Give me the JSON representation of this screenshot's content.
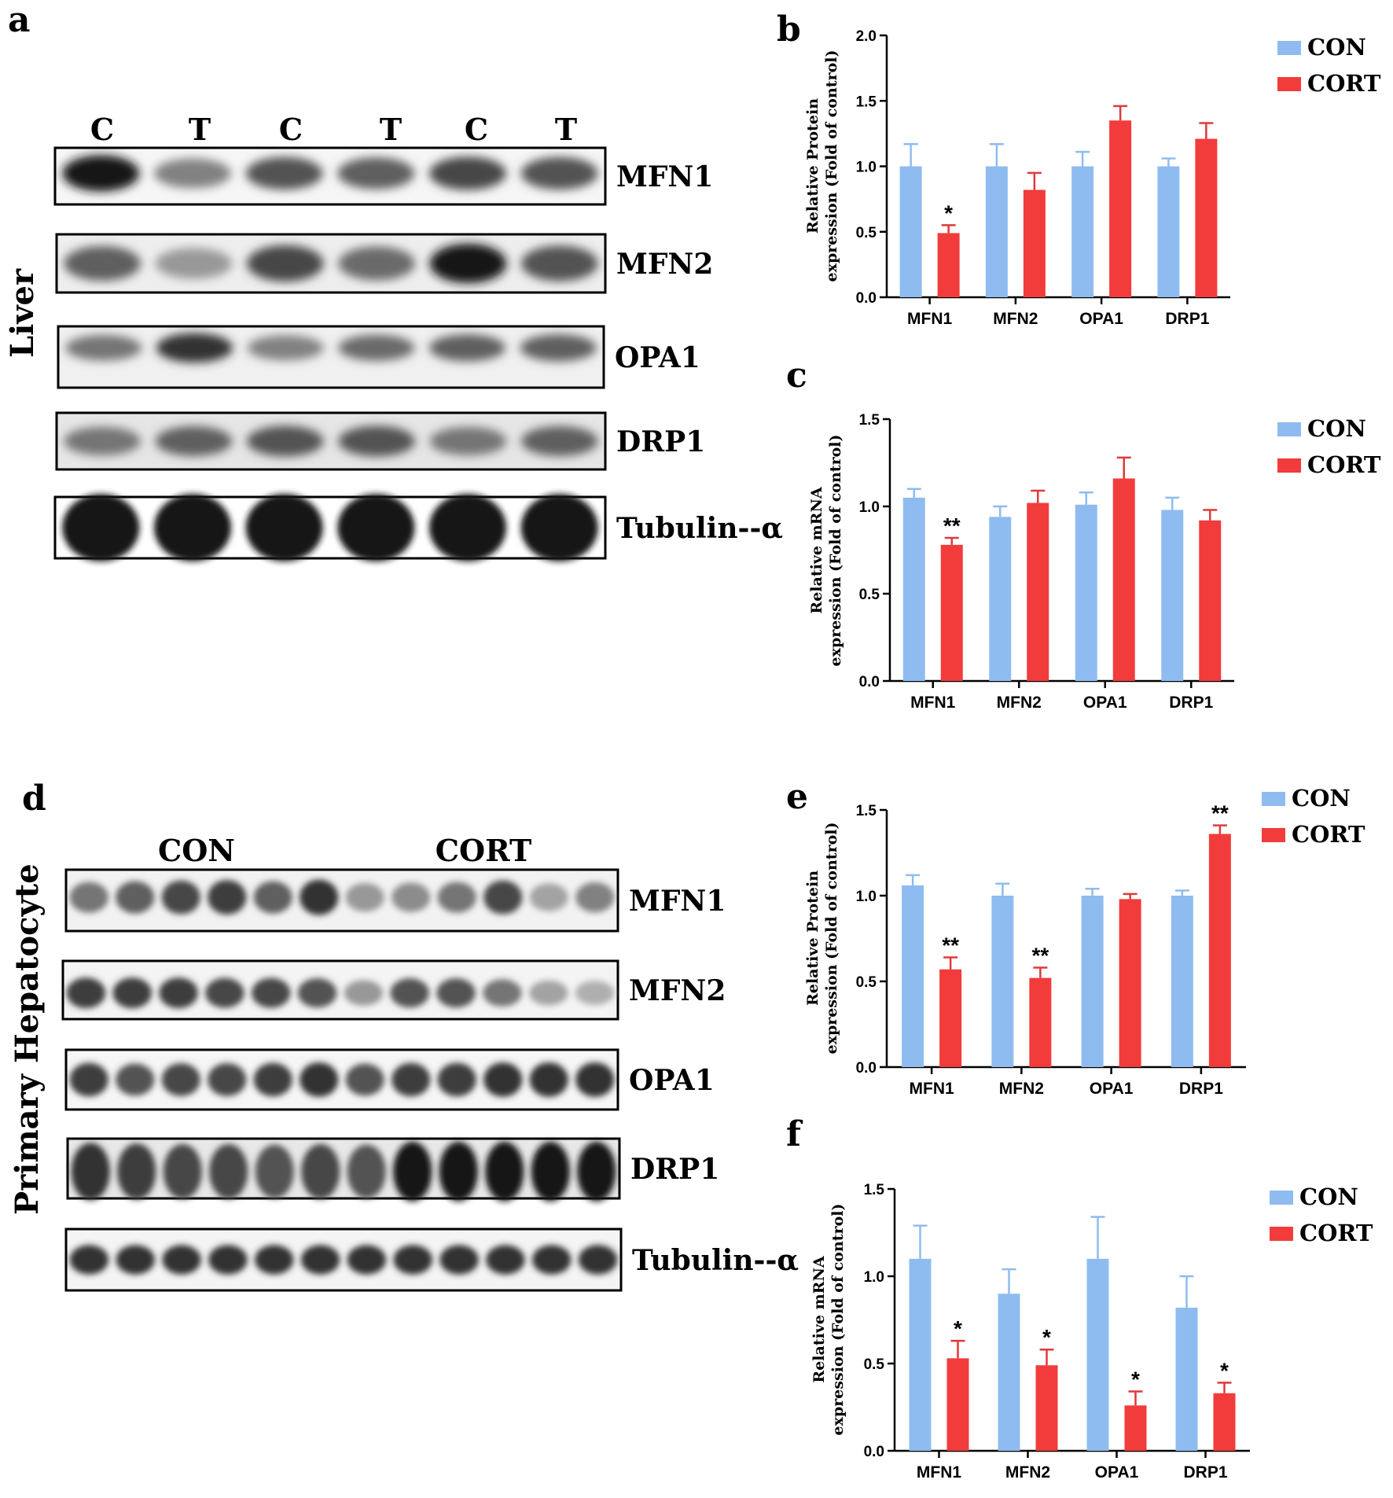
{
  "colors": {
    "con": "#8fbcf0",
    "cort": "#f23b3b",
    "err_con": "#8fbcf0",
    "err_cort": "#e0383b"
  },
  "liver_blot": {
    "panel": "a",
    "side_label": "Liver",
    "lanes": [
      "C",
      "T",
      "C",
      "T",
      "C",
      "T"
    ],
    "bands": [
      "MFN1",
      "MFN2",
      "OPA1",
      "DRP1",
      "Tubulin--α"
    ]
  },
  "hepatocyte_blot": {
    "panel": "d",
    "side_label": "Primary Hepatocyte",
    "groups": [
      "CON",
      "CORT"
    ],
    "bands": [
      "MFN1",
      "MFN2",
      "OPA1",
      "DRP1",
      "Tubulin--α"
    ]
  },
  "chart_data": [
    {
      "panel": "b",
      "type": "bar",
      "categories": [
        "MFN1",
        "MFN2",
        "OPA1",
        "DRP1"
      ],
      "ylabel": [
        "Relative Protein",
        "expression (Fold of control)"
      ],
      "ylim": [
        0,
        2.0
      ],
      "yticks": [
        "0.0",
        "0.5",
        "1.0",
        "1.5",
        "2.0"
      ],
      "legend": [
        "CON",
        "CORT"
      ],
      "series": [
        {
          "name": "CON",
          "values": [
            1.0,
            1.0,
            1.0,
            1.0
          ],
          "errors": [
            0.17,
            0.17,
            0.11,
            0.06
          ]
        },
        {
          "name": "CORT",
          "values": [
            0.49,
            0.82,
            1.35,
            1.21
          ],
          "errors": [
            0.06,
            0.13,
            0.11,
            0.12
          ],
          "significance": [
            "*",
            "",
            "",
            ""
          ]
        }
      ]
    },
    {
      "panel": "c",
      "type": "bar",
      "categories": [
        "MFN1",
        "MFN2",
        "OPA1",
        "DRP1"
      ],
      "ylabel": [
        "Relative mRNA",
        "expression (Fold of control)"
      ],
      "ylim": [
        0,
        1.5
      ],
      "yticks": [
        "0.0",
        "0.5",
        "1.0",
        "1.5"
      ],
      "legend": [
        "CON",
        "CORT"
      ],
      "series": [
        {
          "name": "CON",
          "values": [
            1.05,
            0.94,
            1.01,
            0.98
          ],
          "errors": [
            0.05,
            0.06,
            0.07,
            0.07
          ]
        },
        {
          "name": "CORT",
          "values": [
            0.78,
            1.02,
            1.16,
            0.92
          ],
          "errors": [
            0.04,
            0.07,
            0.12,
            0.06
          ],
          "significance": [
            "**",
            "",
            "",
            ""
          ]
        }
      ]
    },
    {
      "panel": "e",
      "type": "bar",
      "categories": [
        "MFN1",
        "MFN2",
        "OPA1",
        "DRP1"
      ],
      "ylabel": [
        "Relative Protein",
        "expression (Fold of control)"
      ],
      "ylim": [
        0,
        1.5
      ],
      "yticks": [
        "0.0",
        "0.5",
        "1.0",
        "1.5"
      ],
      "legend": [
        "CON",
        "CORT"
      ],
      "series": [
        {
          "name": "CON",
          "values": [
            1.06,
            1.0,
            1.0,
            1.0
          ],
          "errors": [
            0.06,
            0.07,
            0.04,
            0.03
          ]
        },
        {
          "name": "CORT",
          "values": [
            0.57,
            0.52,
            0.98,
            1.36
          ],
          "errors": [
            0.07,
            0.06,
            0.03,
            0.05
          ],
          "significance": [
            "**",
            "**",
            "",
            "**"
          ]
        }
      ]
    },
    {
      "panel": "f",
      "type": "bar",
      "categories": [
        "MFN1",
        "MFN2",
        "OPA1",
        "DRP1"
      ],
      "ylabel": [
        "Relative mRNA",
        "expression (Fold of control)"
      ],
      "ylim": [
        0,
        1.5
      ],
      "yticks": [
        "0.0",
        "0.5",
        "1.0",
        "1.5"
      ],
      "legend": [
        "CON",
        "CORT"
      ],
      "series": [
        {
          "name": "CON",
          "values": [
            1.1,
            0.9,
            1.1,
            0.82
          ],
          "errors": [
            0.19,
            0.14,
            0.24,
            0.18
          ]
        },
        {
          "name": "CORT",
          "values": [
            0.53,
            0.49,
            0.26,
            0.33
          ],
          "errors": [
            0.1,
            0.09,
            0.08,
            0.06
          ],
          "significance": [
            "*",
            "*",
            "*",
            "*"
          ]
        }
      ]
    }
  ]
}
